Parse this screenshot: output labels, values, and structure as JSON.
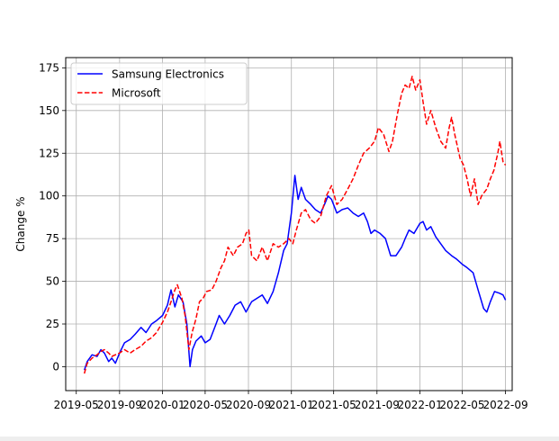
{
  "chart_data": {
    "type": "line",
    "title": "",
    "xlabel": "",
    "ylabel": "Change %",
    "x_ticks": [
      "2019-05",
      "2019-09",
      "2020-01",
      "2020-05",
      "2020-09",
      "2021-01",
      "2021-05",
      "2021-09",
      "2022-01",
      "2022-05",
      "2022-09"
    ],
    "y_ticks": [
      0,
      25,
      50,
      75,
      100,
      125,
      150,
      175
    ],
    "xlim": [
      "2019-04-01",
      "2022-09-20"
    ],
    "ylim": [
      -14,
      181
    ],
    "grid": true,
    "legend_position": "top-left",
    "series": [
      {
        "name": "Samsung Electronics",
        "color": "#0000ff",
        "style": "solid",
        "points": [
          [
            "2019-05-24",
            -2
          ],
          [
            "2019-06-01",
            3
          ],
          [
            "2019-06-15",
            7
          ],
          [
            "2019-06-29",
            6
          ],
          [
            "2019-07-10",
            10
          ],
          [
            "2019-07-20",
            8
          ],
          [
            "2019-08-01",
            3
          ],
          [
            "2019-08-10",
            5
          ],
          [
            "2019-08-20",
            2
          ],
          [
            "2019-09-01",
            8
          ],
          [
            "2019-09-15",
            14
          ],
          [
            "2019-10-01",
            16
          ],
          [
            "2019-10-15",
            19
          ],
          [
            "2019-11-01",
            23
          ],
          [
            "2019-11-15",
            20
          ],
          [
            "2019-12-01",
            25
          ],
          [
            "2019-12-15",
            27
          ],
          [
            "2020-01-01",
            30
          ],
          [
            "2020-01-15",
            36
          ],
          [
            "2020-01-25",
            45
          ],
          [
            "2020-02-05",
            35
          ],
          [
            "2020-02-15",
            42
          ],
          [
            "2020-02-28",
            38
          ],
          [
            "2020-03-10",
            25
          ],
          [
            "2020-03-19",
            0
          ],
          [
            "2020-03-26",
            10
          ],
          [
            "2020-04-05",
            15
          ],
          [
            "2020-04-20",
            18
          ],
          [
            "2020-05-01",
            14
          ],
          [
            "2020-05-15",
            16
          ],
          [
            "2020-06-01",
            25
          ],
          [
            "2020-06-10",
            30
          ],
          [
            "2020-06-25",
            25
          ],
          [
            "2020-07-10",
            30
          ],
          [
            "2020-07-25",
            36
          ],
          [
            "2020-08-10",
            38
          ],
          [
            "2020-08-25",
            32
          ],
          [
            "2020-09-10",
            38
          ],
          [
            "2020-09-25",
            40
          ],
          [
            "2020-10-10",
            42
          ],
          [
            "2020-10-25",
            37
          ],
          [
            "2020-11-10",
            44
          ],
          [
            "2020-11-25",
            55
          ],
          [
            "2020-12-10",
            68
          ],
          [
            "2020-12-20",
            72
          ],
          [
            "2021-01-01",
            90
          ],
          [
            "2021-01-11",
            112
          ],
          [
            "2021-01-20",
            98
          ],
          [
            "2021-01-29",
            105
          ],
          [
            "2021-02-10",
            98
          ],
          [
            "2021-02-25",
            95
          ],
          [
            "2021-03-10",
            92
          ],
          [
            "2021-03-25",
            90
          ],
          [
            "2021-04-05",
            95
          ],
          [
            "2021-04-15",
            100
          ],
          [
            "2021-04-25",
            98
          ],
          [
            "2021-05-10",
            90
          ],
          [
            "2021-05-25",
            92
          ],
          [
            "2021-06-10",
            93
          ],
          [
            "2021-06-25",
            90
          ],
          [
            "2021-07-10",
            88
          ],
          [
            "2021-07-25",
            90
          ],
          [
            "2021-08-05",
            85
          ],
          [
            "2021-08-15",
            78
          ],
          [
            "2021-08-25",
            80
          ],
          [
            "2021-09-10",
            78
          ],
          [
            "2021-09-25",
            75
          ],
          [
            "2021-10-10",
            65
          ],
          [
            "2021-10-25",
            65
          ],
          [
            "2021-11-10",
            70
          ],
          [
            "2021-11-20",
            75
          ],
          [
            "2021-12-01",
            80
          ],
          [
            "2021-12-15",
            78
          ],
          [
            "2022-01-01",
            84
          ],
          [
            "2022-01-10",
            85
          ],
          [
            "2022-01-20",
            80
          ],
          [
            "2022-02-01",
            82
          ],
          [
            "2022-02-15",
            76
          ],
          [
            "2022-03-01",
            72
          ],
          [
            "2022-03-15",
            68
          ],
          [
            "2022-04-01",
            65
          ],
          [
            "2022-04-15",
            63
          ],
          [
            "2022-05-01",
            60
          ],
          [
            "2022-05-15",
            58
          ],
          [
            "2022-06-01",
            55
          ],
          [
            "2022-06-15",
            45
          ],
          [
            "2022-07-01",
            34
          ],
          [
            "2022-07-10",
            32
          ],
          [
            "2022-07-20",
            38
          ],
          [
            "2022-08-01",
            44
          ],
          [
            "2022-08-15",
            43
          ],
          [
            "2022-08-25",
            42
          ],
          [
            "2022-09-01",
            39
          ]
        ]
      },
      {
        "name": "Microsoft",
        "color": "#ff0000",
        "style": "dashed",
        "points": [
          [
            "2019-05-24",
            -4
          ],
          [
            "2019-06-01",
            2
          ],
          [
            "2019-06-15",
            5
          ],
          [
            "2019-06-29",
            7
          ],
          [
            "2019-07-10",
            9
          ],
          [
            "2019-07-20",
            10
          ],
          [
            "2019-08-01",
            8
          ],
          [
            "2019-08-10",
            6
          ],
          [
            "2019-08-20",
            7
          ],
          [
            "2019-09-01",
            8
          ],
          [
            "2019-09-15",
            10
          ],
          [
            "2019-10-01",
            8
          ],
          [
            "2019-10-15",
            10
          ],
          [
            "2019-11-01",
            12
          ],
          [
            "2019-11-15",
            15
          ],
          [
            "2019-12-01",
            17
          ],
          [
            "2019-12-15",
            20
          ],
          [
            "2020-01-01",
            26
          ],
          [
            "2020-01-15",
            32
          ],
          [
            "2020-01-25",
            38
          ],
          [
            "2020-02-05",
            45
          ],
          [
            "2020-02-12",
            48
          ],
          [
            "2020-02-25",
            40
          ],
          [
            "2020-03-05",
            30
          ],
          [
            "2020-03-16",
            10
          ],
          [
            "2020-03-25",
            20
          ],
          [
            "2020-04-05",
            28
          ],
          [
            "2020-04-15",
            38
          ],
          [
            "2020-04-25",
            40
          ],
          [
            "2020-05-05",
            44
          ],
          [
            "2020-05-20",
            45
          ],
          [
            "2020-06-01",
            50
          ],
          [
            "2020-06-15",
            58
          ],
          [
            "2020-06-25",
            62
          ],
          [
            "2020-07-05",
            70
          ],
          [
            "2020-07-20",
            65
          ],
          [
            "2020-08-01",
            70
          ],
          [
            "2020-08-15",
            72
          ],
          [
            "2020-08-25",
            78
          ],
          [
            "2020-09-02",
            80
          ],
          [
            "2020-09-10",
            65
          ],
          [
            "2020-09-25",
            62
          ],
          [
            "2020-10-10",
            70
          ],
          [
            "2020-10-25",
            62
          ],
          [
            "2020-11-10",
            72
          ],
          [
            "2020-11-25",
            70
          ],
          [
            "2020-12-10",
            72
          ],
          [
            "2020-12-25",
            75
          ],
          [
            "2021-01-05",
            72
          ],
          [
            "2021-01-15",
            80
          ],
          [
            "2021-01-29",
            90
          ],
          [
            "2021-02-10",
            92
          ],
          [
            "2021-02-25",
            86
          ],
          [
            "2021-03-10",
            84
          ],
          [
            "2021-03-25",
            88
          ],
          [
            "2021-04-10",
            100
          ],
          [
            "2021-04-25",
            106
          ],
          [
            "2021-05-10",
            95
          ],
          [
            "2021-05-25",
            98
          ],
          [
            "2021-06-10",
            104
          ],
          [
            "2021-06-25",
            110
          ],
          [
            "2021-07-10",
            118
          ],
          [
            "2021-07-25",
            125
          ],
          [
            "2021-08-10",
            128
          ],
          [
            "2021-08-25",
            132
          ],
          [
            "2021-09-05",
            140
          ],
          [
            "2021-09-20",
            136
          ],
          [
            "2021-10-05",
            126
          ],
          [
            "2021-10-15",
            132
          ],
          [
            "2021-10-29",
            148
          ],
          [
            "2021-11-10",
            160
          ],
          [
            "2021-11-20",
            165
          ],
          [
            "2021-12-01",
            163
          ],
          [
            "2021-12-10",
            170
          ],
          [
            "2021-12-20",
            162
          ],
          [
            "2022-01-01",
            168
          ],
          [
            "2022-01-10",
            155
          ],
          [
            "2022-01-20",
            142
          ],
          [
            "2022-02-01",
            150
          ],
          [
            "2022-02-15",
            140
          ],
          [
            "2022-03-01",
            132
          ],
          [
            "2022-03-15",
            128
          ],
          [
            "2022-03-25",
            140
          ],
          [
            "2022-04-01",
            146
          ],
          [
            "2022-04-10",
            136
          ],
          [
            "2022-04-25",
            122
          ],
          [
            "2022-05-05",
            118
          ],
          [
            "2022-05-15",
            110
          ],
          [
            "2022-05-25",
            100
          ],
          [
            "2022-06-05",
            110
          ],
          [
            "2022-06-15",
            95
          ],
          [
            "2022-06-25",
            100
          ],
          [
            "2022-07-10",
            104
          ],
          [
            "2022-07-20",
            110
          ],
          [
            "2022-07-30",
            115
          ],
          [
            "2022-08-10",
            125
          ],
          [
            "2022-08-16",
            132
          ],
          [
            "2022-08-25",
            120
          ],
          [
            "2022-09-01",
            118
          ]
        ]
      }
    ]
  }
}
